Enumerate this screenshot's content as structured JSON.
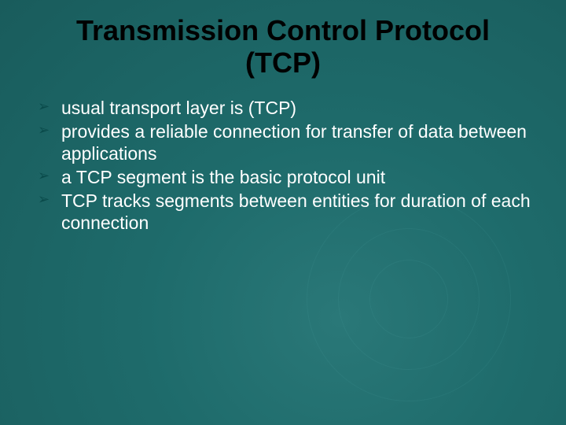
{
  "slide": {
    "title_line1": "Transmission Control Protocol",
    "title_line2": "(TCP)",
    "title_color": "#000000",
    "title_fontsize": 36,
    "title_fontweight": "bold",
    "bullet_marker": "➢",
    "bullet_marker_color": "#0a4a4a",
    "bullet_text_color": "#ffffff",
    "bullet_fontsize": 23,
    "background_color": "#1e6b6b",
    "bullets": [
      "usual transport layer is (TCP)",
      "provides a reliable connection for transfer of data between applications",
      "a TCP segment is the basic protocol unit",
      "TCP tracks segments between entities for duration of each connection"
    ]
  }
}
